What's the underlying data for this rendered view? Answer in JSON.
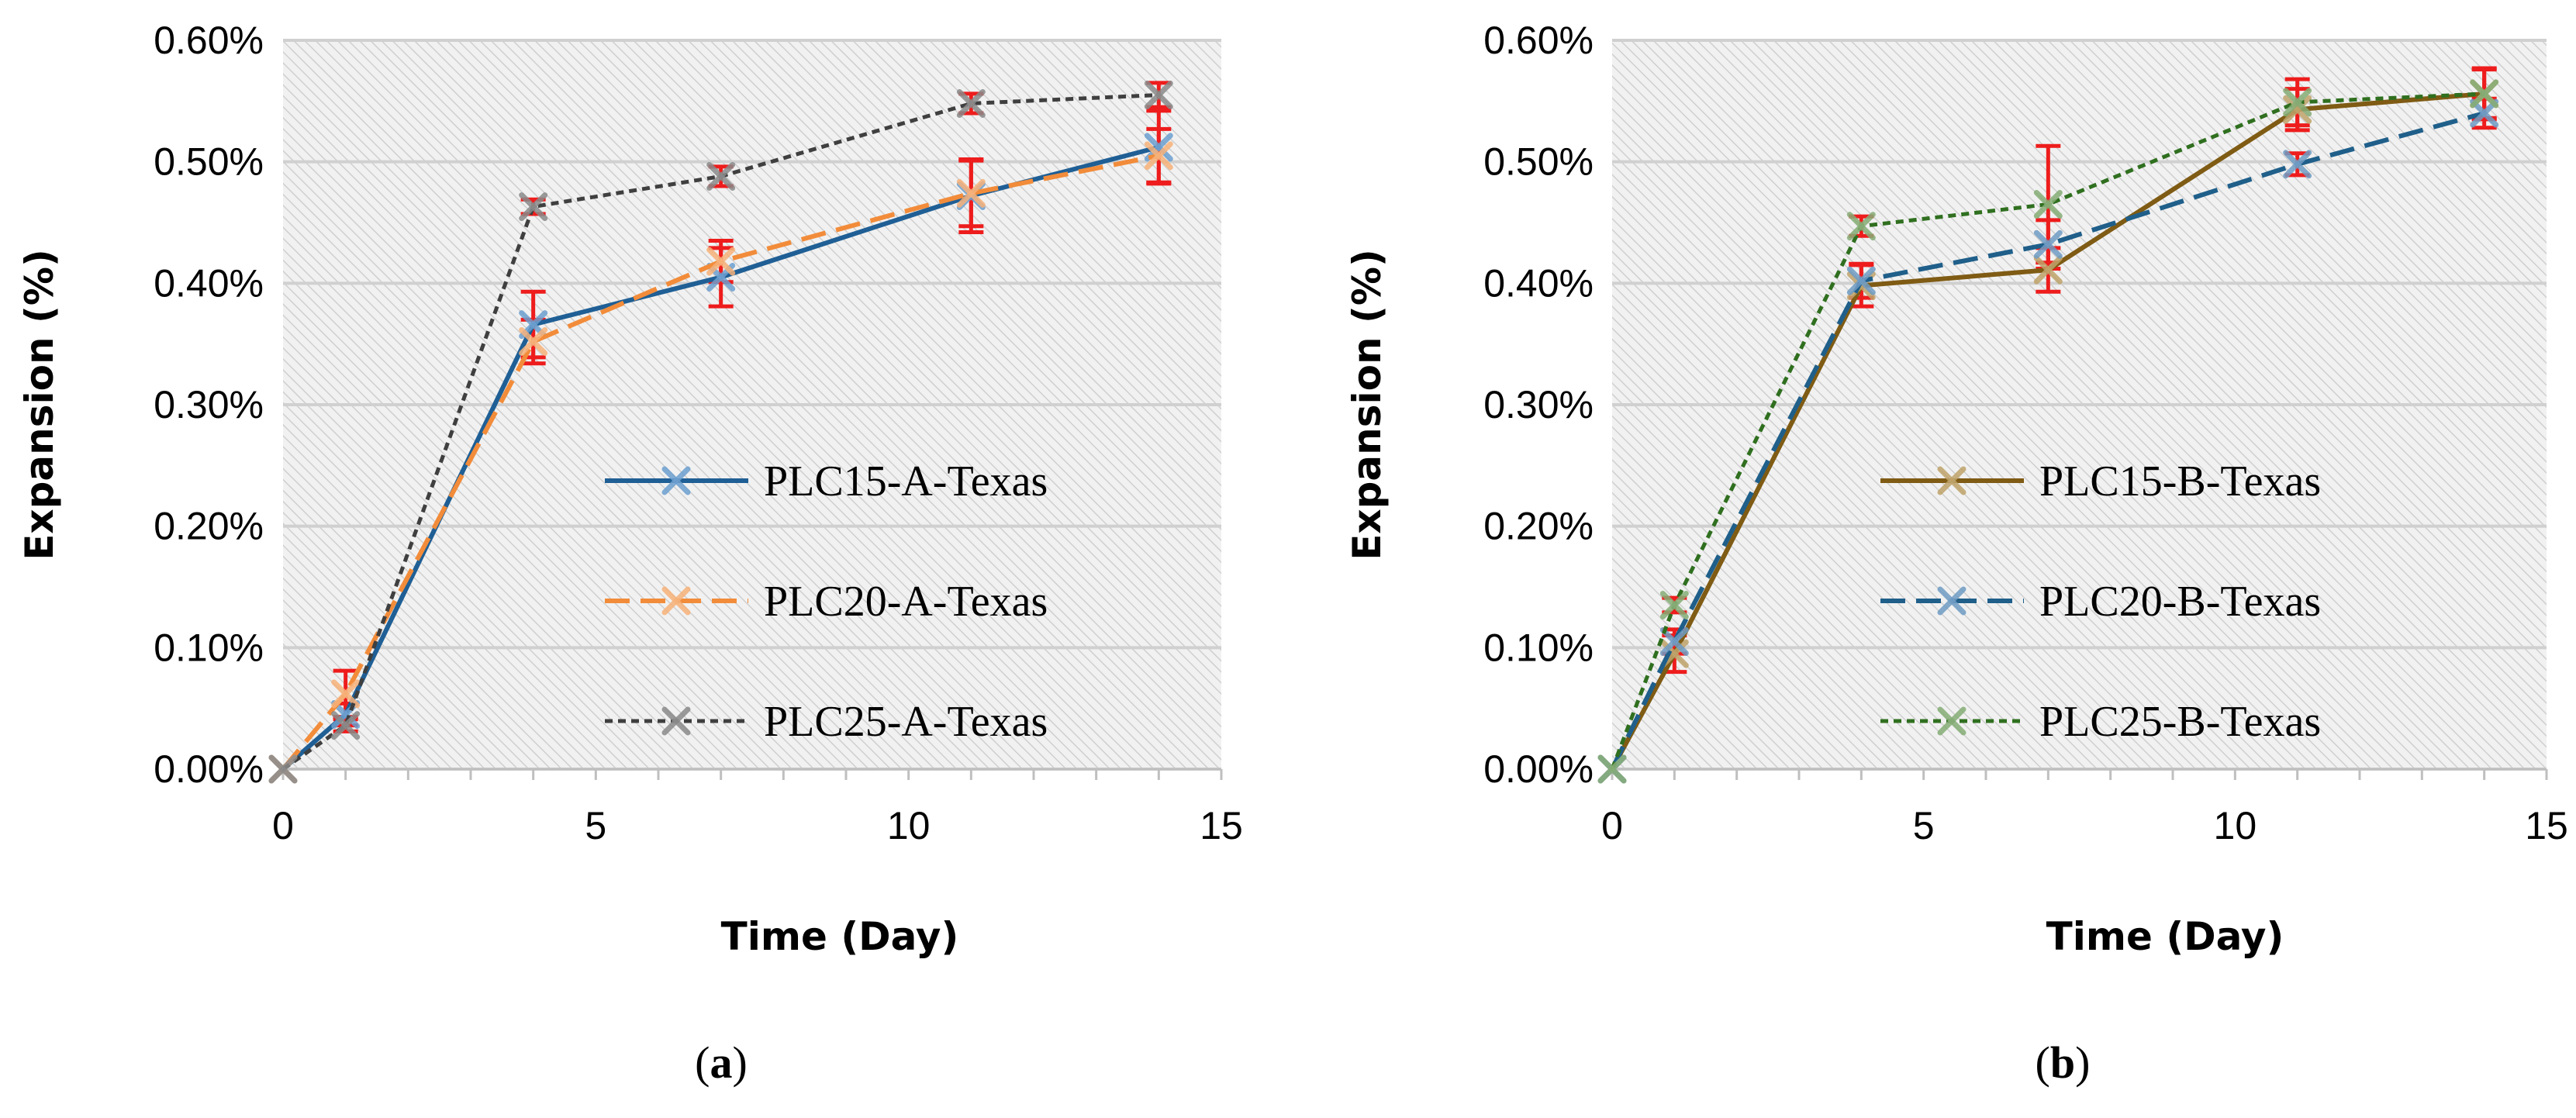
{
  "chart_data": [
    {
      "type": "line",
      "panel": "a",
      "caption_open": "(",
      "caption_letter": "a",
      "caption_close": ")",
      "xlabel": "Time (Day)",
      "ylabel": "Expansion (%)",
      "xlim": [
        0,
        15
      ],
      "ylim": [
        0,
        0.6
      ],
      "xticks": [
        0,
        5,
        10,
        15
      ],
      "xtick_labels": [
        "0",
        "5",
        "10",
        "15"
      ],
      "yticks": [
        0,
        0.1,
        0.2,
        0.3,
        0.4,
        0.5,
        0.6
      ],
      "ytick_labels": [
        "0.00%",
        "0.10%",
        "0.20%",
        "0.30%",
        "0.40%",
        "0.50%",
        "0.60%"
      ],
      "grid": true,
      "legend_position": "center-right",
      "x": [
        0,
        1,
        4,
        7,
        11,
        14
      ],
      "series": [
        {
          "name": "PLC15-A-Texas",
          "color": "#1f5f95",
          "marker_color": "#6c9fcf",
          "dash": "solid",
          "values": [
            0,
            0.045,
            0.366,
            0.405,
            0.472,
            0.512
          ],
          "errors": [
            0,
            0.009,
            0.027,
            0.024,
            0.03,
            0.03
          ]
        },
        {
          "name": "PLC20-A-Texas",
          "color": "#f28c3a",
          "marker_color": "#f7b27a",
          "dash": "dashed",
          "values": [
            0,
            0.062,
            0.352,
            0.418,
            0.474,
            0.505
          ],
          "errors": [
            0,
            0.019,
            0.018,
            0.017,
            0.027,
            0.022
          ]
        },
        {
          "name": "PLC25-A-Texas",
          "color": "#3f3f3f",
          "marker_color": "#8a8a8a",
          "dash": "dotted",
          "values": [
            0,
            0.036,
            0.463,
            0.488,
            0.548,
            0.555
          ],
          "errors": [
            0,
            0.005,
            0.006,
            0.008,
            0.008,
            0.01
          ]
        }
      ]
    },
    {
      "type": "line",
      "panel": "b",
      "caption_open": "(",
      "caption_letter": "b",
      "caption_close": ")",
      "xlabel": "Time (Day)",
      "ylabel": "Expansion (%)",
      "xlim": [
        0,
        15
      ],
      "ylim": [
        0,
        0.6
      ],
      "xticks": [
        0,
        5,
        10,
        15
      ],
      "xtick_labels": [
        "0",
        "5",
        "10",
        "15"
      ],
      "yticks": [
        0,
        0.1,
        0.2,
        0.3,
        0.4,
        0.5,
        0.6
      ],
      "ytick_labels": [
        "0.00%",
        "0.10%",
        "0.20%",
        "0.30%",
        "0.40%",
        "0.50%",
        "0.60%"
      ],
      "grid": true,
      "legend_position": "center-right",
      "x": [
        0,
        1,
        4,
        7,
        11,
        14
      ],
      "series": [
        {
          "name": "PLC15-B-Texas",
          "color": "#7f5b14",
          "marker_color": "#bfa36a",
          "dash": "solid",
          "values": [
            0,
            0.095,
            0.398,
            0.411,
            0.543,
            0.556
          ],
          "errors": [
            0,
            0.015,
            0.017,
            0.018,
            0.017,
            0.021
          ]
        },
        {
          "name": "PLC20-B-Texas",
          "color": "#1f5f8a",
          "marker_color": "#6f9cc4",
          "dash": "dashed",
          "values": [
            0,
            0.105,
            0.402,
            0.432,
            0.498,
            0.54
          ],
          "errors": [
            0,
            0.01,
            0.014,
            0.02,
            0.009,
            0.012
          ]
        },
        {
          "name": "PLC25-B-Texas",
          "color": "#2f6f1f",
          "marker_color": "#86ad76",
          "dash": "dotted",
          "values": [
            0,
            0.135,
            0.447,
            0.465,
            0.549,
            0.556
          ],
          "errors": [
            0,
            0.006,
            0.008,
            0.048,
            0.019,
            0.02
          ]
        }
      ]
    }
  ]
}
